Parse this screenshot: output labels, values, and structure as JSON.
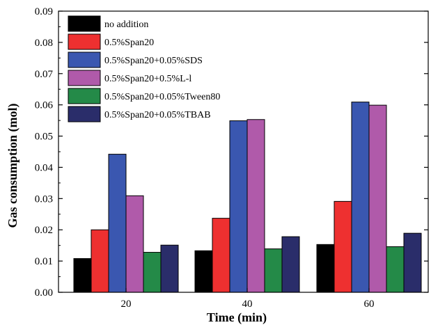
{
  "chart_data": {
    "type": "bar",
    "categories": [
      "20",
      "40",
      "60"
    ],
    "xlabel": "Time (min)",
    "ylabel": "Gas consumption (mol)",
    "ylim": [
      0,
      0.09
    ],
    "yticks": [
      "0.00",
      "0.01",
      "0.02",
      "0.03",
      "0.04",
      "0.05",
      "0.06",
      "0.07",
      "0.08",
      "0.09"
    ],
    "grid": false,
    "legend_position": "top-left",
    "series": [
      {
        "name": "no addition",
        "color": "#000000",
        "values": [
          0.0108,
          0.0133,
          0.0153
        ]
      },
      {
        "name": "0.5%Span20",
        "color": "#ee3030",
        "values": [
          0.02,
          0.0237,
          0.0291
        ]
      },
      {
        "name": "0.5%Span20+0.05%SDS",
        "color": "#3a57b0",
        "values": [
          0.0442,
          0.0549,
          0.0609
        ]
      },
      {
        "name": "0.5%Span20+0.5%L-l",
        "color": "#b05aaa",
        "values": [
          0.0309,
          0.0553,
          0.0599
        ]
      },
      {
        "name": "0.5%Span20+0.05%Tween80",
        "color": "#248a48",
        "values": [
          0.0128,
          0.0139,
          0.0146
        ]
      },
      {
        "name": "0.5%Span20+0.05%TBAB",
        "color": "#2a2d6a",
        "values": [
          0.0151,
          0.0178,
          0.0189
        ]
      }
    ]
  }
}
